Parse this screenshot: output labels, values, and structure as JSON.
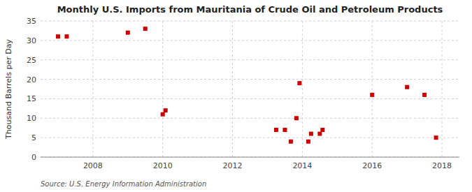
{
  "chart_data": {
    "type": "scatter",
    "title": "Monthly U.S. Imports from Mauritania of Crude Oil and Petroleum Products",
    "ylabel": "Thousand Barrels per Day",
    "source": "Source: U.S. Energy Information Administration",
    "x": [
      2007.0,
      2007.25,
      2009.0,
      2009.5,
      2010.0,
      2010.08,
      2013.25,
      2013.5,
      2013.67,
      2013.83,
      2013.92,
      2014.17,
      2014.25,
      2014.5,
      2014.58,
      2016.0,
      2017.0,
      2017.5,
      2017.83
    ],
    "values": [
      31,
      31,
      32,
      33,
      11,
      12,
      7,
      7,
      4,
      10,
      19,
      4,
      6,
      6,
      7,
      16,
      18,
      16,
      5
    ],
    "color": "#cc0000",
    "marker": "square",
    "xlim": [
      2006.5,
      2018.5
    ],
    "ylim": [
      0,
      35
    ],
    "xticks": [
      2008,
      2010,
      2012,
      2014,
      2016,
      2018
    ],
    "yticks": [
      0,
      5,
      10,
      15,
      20,
      25,
      30,
      35
    ],
    "grid": true
  }
}
